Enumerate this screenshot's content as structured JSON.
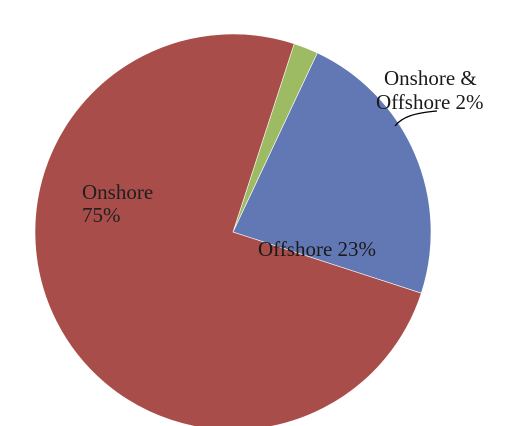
{
  "chart_data": {
    "type": "pie",
    "title": "",
    "slices": [
      {
        "name": "Onshore",
        "value": 75,
        "label_line1": "Onshore",
        "label_line2": "75%",
        "color": "#a84d4a"
      },
      {
        "name": "Offshore",
        "value": 23,
        "label_line1": "Offshore 23%",
        "color": "#6278b4"
      },
      {
        "name": "Onshore & Offshore",
        "value": 2,
        "label_line1": "Onshore &",
        "label_line2": "Offshore 2%",
        "color": "#9cbb62"
      }
    ],
    "legend": "none"
  }
}
